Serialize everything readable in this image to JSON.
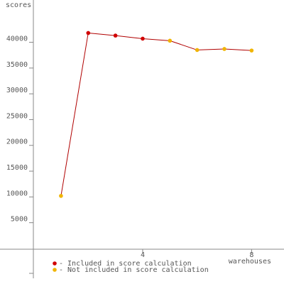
{
  "chart_data": {
    "type": "line",
    "y_label": "scores",
    "x_label": "warehouses",
    "x": [
      1,
      2,
      3,
      4,
      5,
      6,
      7,
      8
    ],
    "series": [
      {
        "name": "- Included in score calculation",
        "color": "#d00000",
        "values": [
          null,
          41800,
          41300,
          40700,
          null,
          null,
          null,
          null
        ]
      },
      {
        "name": "- Not included in score calculation",
        "color": "#f0b400",
        "values": [
          10200,
          null,
          null,
          null,
          40300,
          38500,
          38700,
          38400
        ]
      }
    ],
    "line_color": "#b00000",
    "xlim": [
      -1.24,
      9.19
    ],
    "ylim": [
      -5790,
      48200
    ],
    "xticks": [
      4,
      8
    ],
    "yticks": [
      5000,
      10000,
      15000,
      20000,
      25000,
      30000,
      35000,
      40000
    ]
  }
}
